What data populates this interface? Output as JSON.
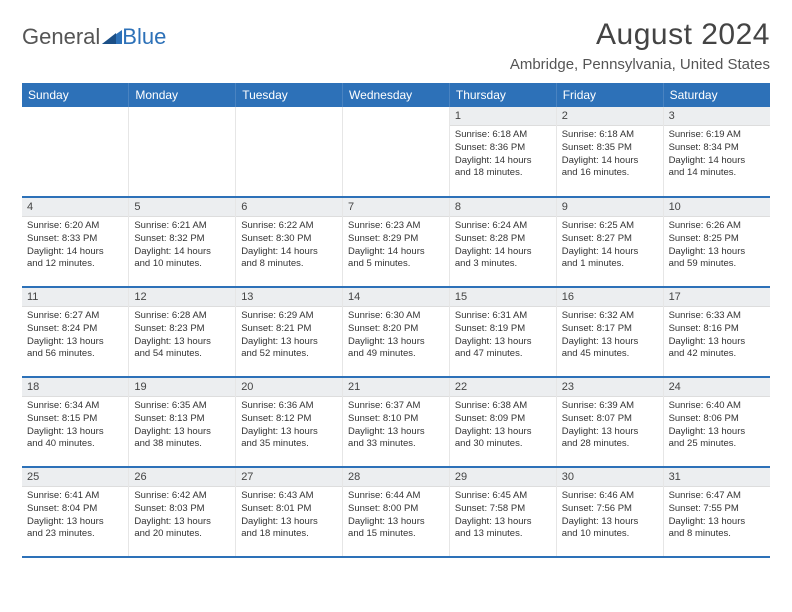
{
  "brand": {
    "part1": "General",
    "part2": "Blue"
  },
  "title": "August 2024",
  "location": "Ambridge, Pennsylvania, United States",
  "colors": {
    "header_bg": "#2d71b8",
    "header_text": "#ffffff",
    "daynum_bg": "#eceef0",
    "border_week": "#2d71b8"
  },
  "daysOfWeek": [
    "Sunday",
    "Monday",
    "Tuesday",
    "Wednesday",
    "Thursday",
    "Friday",
    "Saturday"
  ],
  "weeks": [
    [
      null,
      null,
      null,
      null,
      {
        "n": "1",
        "sr": "6:18 AM",
        "ss": "8:36 PM",
        "dh": "14",
        "dm": "18"
      },
      {
        "n": "2",
        "sr": "6:18 AM",
        "ss": "8:35 PM",
        "dh": "14",
        "dm": "16"
      },
      {
        "n": "3",
        "sr": "6:19 AM",
        "ss": "8:34 PM",
        "dh": "14",
        "dm": "14"
      }
    ],
    [
      {
        "n": "4",
        "sr": "6:20 AM",
        "ss": "8:33 PM",
        "dh": "14",
        "dm": "12"
      },
      {
        "n": "5",
        "sr": "6:21 AM",
        "ss": "8:32 PM",
        "dh": "14",
        "dm": "10"
      },
      {
        "n": "6",
        "sr": "6:22 AM",
        "ss": "8:30 PM",
        "dh": "14",
        "dm": "8"
      },
      {
        "n": "7",
        "sr": "6:23 AM",
        "ss": "8:29 PM",
        "dh": "14",
        "dm": "5"
      },
      {
        "n": "8",
        "sr": "6:24 AM",
        "ss": "8:28 PM",
        "dh": "14",
        "dm": "3"
      },
      {
        "n": "9",
        "sr": "6:25 AM",
        "ss": "8:27 PM",
        "dh": "14",
        "dm": "1"
      },
      {
        "n": "10",
        "sr": "6:26 AM",
        "ss": "8:25 PM",
        "dh": "13",
        "dm": "59"
      }
    ],
    [
      {
        "n": "11",
        "sr": "6:27 AM",
        "ss": "8:24 PM",
        "dh": "13",
        "dm": "56"
      },
      {
        "n": "12",
        "sr": "6:28 AM",
        "ss": "8:23 PM",
        "dh": "13",
        "dm": "54"
      },
      {
        "n": "13",
        "sr": "6:29 AM",
        "ss": "8:21 PM",
        "dh": "13",
        "dm": "52"
      },
      {
        "n": "14",
        "sr": "6:30 AM",
        "ss": "8:20 PM",
        "dh": "13",
        "dm": "49"
      },
      {
        "n": "15",
        "sr": "6:31 AM",
        "ss": "8:19 PM",
        "dh": "13",
        "dm": "47"
      },
      {
        "n": "16",
        "sr": "6:32 AM",
        "ss": "8:17 PM",
        "dh": "13",
        "dm": "45"
      },
      {
        "n": "17",
        "sr": "6:33 AM",
        "ss": "8:16 PM",
        "dh": "13",
        "dm": "42"
      }
    ],
    [
      {
        "n": "18",
        "sr": "6:34 AM",
        "ss": "8:15 PM",
        "dh": "13",
        "dm": "40"
      },
      {
        "n": "19",
        "sr": "6:35 AM",
        "ss": "8:13 PM",
        "dh": "13",
        "dm": "38"
      },
      {
        "n": "20",
        "sr": "6:36 AM",
        "ss": "8:12 PM",
        "dh": "13",
        "dm": "35"
      },
      {
        "n": "21",
        "sr": "6:37 AM",
        "ss": "8:10 PM",
        "dh": "13",
        "dm": "33"
      },
      {
        "n": "22",
        "sr": "6:38 AM",
        "ss": "8:09 PM",
        "dh": "13",
        "dm": "30"
      },
      {
        "n": "23",
        "sr": "6:39 AM",
        "ss": "8:07 PM",
        "dh": "13",
        "dm": "28"
      },
      {
        "n": "24",
        "sr": "6:40 AM",
        "ss": "8:06 PM",
        "dh": "13",
        "dm": "25"
      }
    ],
    [
      {
        "n": "25",
        "sr": "6:41 AM",
        "ss": "8:04 PM",
        "dh": "13",
        "dm": "23"
      },
      {
        "n": "26",
        "sr": "6:42 AM",
        "ss": "8:03 PM",
        "dh": "13",
        "dm": "20"
      },
      {
        "n": "27",
        "sr": "6:43 AM",
        "ss": "8:01 PM",
        "dh": "13",
        "dm": "18"
      },
      {
        "n": "28",
        "sr": "6:44 AM",
        "ss": "8:00 PM",
        "dh": "13",
        "dm": "15"
      },
      {
        "n": "29",
        "sr": "6:45 AM",
        "ss": "7:58 PM",
        "dh": "13",
        "dm": "13"
      },
      {
        "n": "30",
        "sr": "6:46 AM",
        "ss": "7:56 PM",
        "dh": "13",
        "dm": "10"
      },
      {
        "n": "31",
        "sr": "6:47 AM",
        "ss": "7:55 PM",
        "dh": "13",
        "dm": "8"
      }
    ]
  ],
  "labels": {
    "sunrise": "Sunrise:",
    "sunset": "Sunset:",
    "daylight": "Daylight:",
    "hours": "hours",
    "and": "and",
    "minutes": "minutes."
  }
}
